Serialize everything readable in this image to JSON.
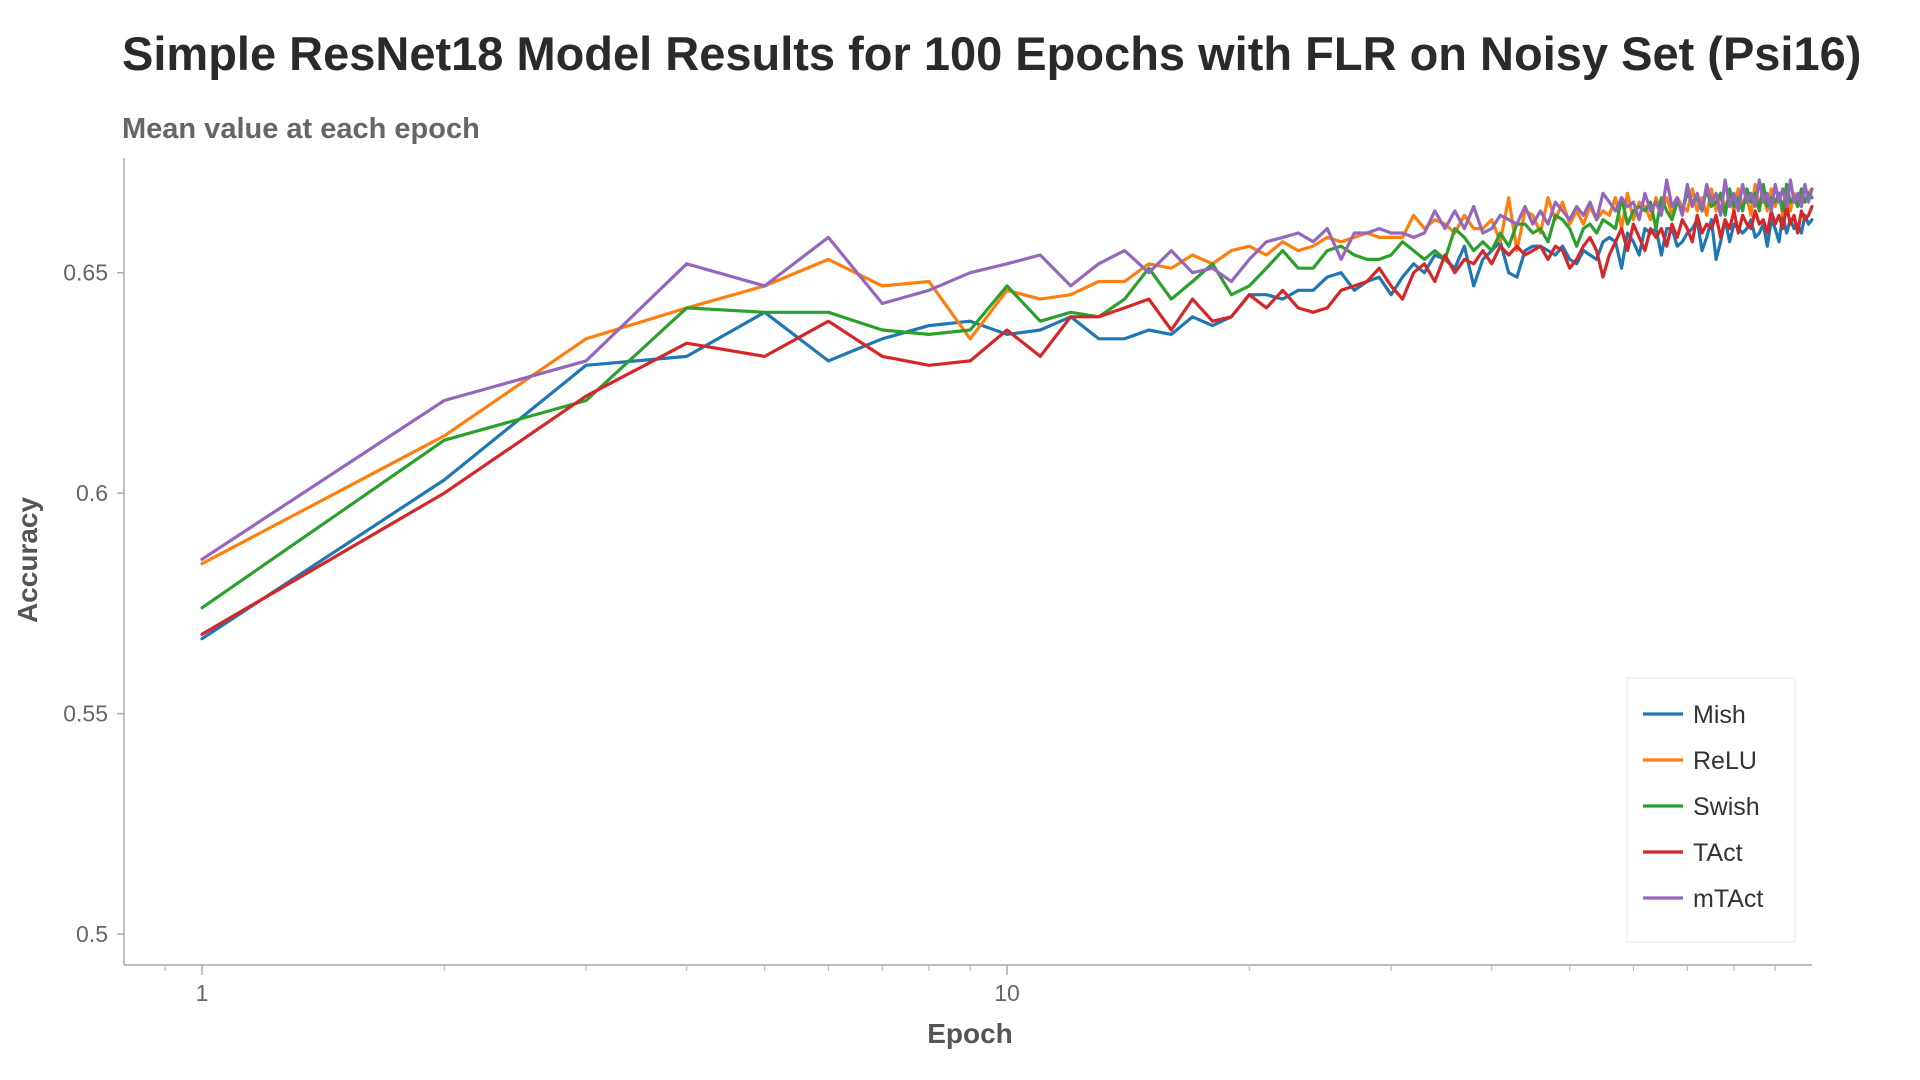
{
  "chart_data": {
    "type": "line",
    "title": "Simple ResNet18 Model Results for 100 Epochs with FLR on Noisy Set (Psi16)",
    "subtitle": "Mean value at each epoch",
    "xlabel": "Epoch",
    "ylabel": "Accuracy",
    "x_scale": "log",
    "xlim": [
      0.8,
      100
    ],
    "ylim": [
      0.493,
      0.676
    ],
    "x_ticks": [
      {
        "value": 1,
        "label": "1"
      },
      {
        "value": 10,
        "label": "10"
      }
    ],
    "y_ticks": [
      {
        "value": 0.5,
        "label": "0.5"
      },
      {
        "value": 0.55,
        "label": "0.55"
      },
      {
        "value": 0.6,
        "label": "0.6"
      },
      {
        "value": 0.65,
        "label": "0.65"
      }
    ],
    "grid": false,
    "legend_position": "bottom-right",
    "x": [
      1,
      2,
      3,
      4,
      5,
      6,
      7,
      8,
      9,
      10,
      11,
      12,
      13,
      14,
      15,
      16,
      17,
      18,
      19,
      20,
      21,
      22,
      23,
      24,
      25,
      26,
      27,
      28,
      29,
      30,
      31,
      32,
      33,
      34,
      35,
      36,
      37,
      38,
      39,
      40,
      41,
      42,
      43,
      44,
      45,
      46,
      47,
      48,
      49,
      50,
      51,
      52,
      53,
      54,
      55,
      56,
      57,
      58,
      59,
      60,
      61,
      62,
      63,
      64,
      65,
      66,
      67,
      68,
      69,
      70,
      71,
      72,
      73,
      74,
      75,
      76,
      77,
      78,
      79,
      80,
      81,
      82,
      83,
      84,
      85,
      86,
      87,
      88,
      89,
      90,
      91,
      92,
      93,
      94,
      95,
      96,
      97,
      98,
      99,
      100
    ],
    "series": [
      {
        "name": "Mish",
        "color": "#1f77b4",
        "values": [
          0.567,
          0.603,
          0.629,
          0.631,
          0.641,
          0.63,
          0.635,
          0.638,
          0.639,
          0.636,
          0.637,
          0.64,
          0.635,
          0.635,
          0.637,
          0.636,
          0.64,
          0.638,
          0.64,
          0.645,
          0.645,
          0.644,
          0.646,
          0.646,
          0.649,
          0.65,
          0.646,
          0.648,
          0.649,
          0.645,
          0.649,
          0.652,
          0.65,
          0.654,
          0.653,
          0.651,
          0.656,
          0.647,
          0.653,
          0.655,
          0.657,
          0.65,
          0.649,
          0.655,
          0.656,
          0.656,
          0.655,
          0.654,
          0.656,
          0.653,
          0.652,
          0.655,
          0.654,
          0.653,
          0.657,
          0.658,
          0.657,
          0.651,
          0.659,
          0.657,
          0.654,
          0.66,
          0.659,
          0.66,
          0.654,
          0.66,
          0.66,
          0.656,
          0.657,
          0.659,
          0.66,
          0.662,
          0.655,
          0.658,
          0.662,
          0.653,
          0.657,
          0.662,
          0.657,
          0.661,
          0.66,
          0.659,
          0.66,
          0.662,
          0.658,
          0.659,
          0.661,
          0.656,
          0.662,
          0.66,
          0.657,
          0.663,
          0.659,
          0.662,
          0.66,
          0.661,
          0.659,
          0.663,
          0.661,
          0.662
        ]
      },
      {
        "name": "ReLU",
        "color": "#ff7f0e",
        "values": [
          0.584,
          0.613,
          0.635,
          0.642,
          0.647,
          0.653,
          0.647,
          0.648,
          0.635,
          0.646,
          0.644,
          0.645,
          0.648,
          0.648,
          0.652,
          0.651,
          0.654,
          0.652,
          0.655,
          0.656,
          0.654,
          0.657,
          0.655,
          0.656,
          0.658,
          0.657,
          0.658,
          0.659,
          0.658,
          0.658,
          0.658,
          0.663,
          0.66,
          0.662,
          0.661,
          0.659,
          0.663,
          0.66,
          0.66,
          0.662,
          0.657,
          0.667,
          0.655,
          0.664,
          0.663,
          0.659,
          0.667,
          0.662,
          0.666,
          0.661,
          0.664,
          0.661,
          0.665,
          0.662,
          0.664,
          0.663,
          0.667,
          0.66,
          0.668,
          0.662,
          0.666,
          0.665,
          0.662,
          0.667,
          0.664,
          0.667,
          0.663,
          0.667,
          0.665,
          0.664,
          0.669,
          0.664,
          0.667,
          0.663,
          0.669,
          0.664,
          0.668,
          0.665,
          0.667,
          0.664,
          0.669,
          0.665,
          0.667,
          0.663,
          0.67,
          0.665,
          0.667,
          0.664,
          0.669,
          0.665,
          0.668,
          0.663,
          0.67,
          0.664,
          0.668,
          0.665,
          0.667,
          0.666,
          0.668,
          0.669
        ]
      },
      {
        "name": "Swish",
        "color": "#2ca02c",
        "values": [
          0.574,
          0.612,
          0.621,
          0.642,
          0.641,
          0.641,
          0.637,
          0.636,
          0.637,
          0.647,
          0.639,
          0.641,
          0.64,
          0.644,
          0.651,
          0.644,
          0.648,
          0.652,
          0.645,
          0.647,
          0.651,
          0.655,
          0.651,
          0.651,
          0.655,
          0.656,
          0.654,
          0.653,
          0.653,
          0.654,
          0.657,
          0.655,
          0.653,
          0.655,
          0.653,
          0.66,
          0.658,
          0.655,
          0.657,
          0.655,
          0.659,
          0.656,
          0.661,
          0.661,
          0.659,
          0.66,
          0.657,
          0.663,
          0.662,
          0.66,
          0.656,
          0.66,
          0.661,
          0.659,
          0.662,
          0.661,
          0.66,
          0.667,
          0.661,
          0.664,
          0.665,
          0.664,
          0.666,
          0.66,
          0.667,
          0.664,
          0.662,
          0.666,
          0.664,
          0.668,
          0.666,
          0.667,
          0.664,
          0.669,
          0.665,
          0.666,
          0.668,
          0.663,
          0.669,
          0.665,
          0.667,
          0.664,
          0.669,
          0.666,
          0.668,
          0.664,
          0.67,
          0.665,
          0.667,
          0.666,
          0.668,
          0.664,
          0.67,
          0.666,
          0.667,
          0.665,
          0.669,
          0.666,
          0.668,
          0.667
        ]
      },
      {
        "name": "TAct",
        "color": "#d62728",
        "values": [
          0.568,
          0.6,
          0.622,
          0.634,
          0.631,
          0.639,
          0.631,
          0.629,
          0.63,
          0.637,
          0.631,
          0.64,
          0.64,
          0.642,
          0.644,
          0.637,
          0.644,
          0.639,
          0.64,
          0.645,
          0.642,
          0.646,
          0.642,
          0.641,
          0.642,
          0.646,
          0.647,
          0.648,
          0.651,
          0.647,
          0.644,
          0.65,
          0.652,
          0.648,
          0.654,
          0.65,
          0.653,
          0.652,
          0.655,
          0.652,
          0.656,
          0.654,
          0.656,
          0.654,
          0.655,
          0.656,
          0.653,
          0.656,
          0.655,
          0.651,
          0.653,
          0.656,
          0.658,
          0.655,
          0.649,
          0.654,
          0.657,
          0.66,
          0.655,
          0.661,
          0.658,
          0.655,
          0.66,
          0.658,
          0.66,
          0.656,
          0.661,
          0.658,
          0.662,
          0.66,
          0.657,
          0.663,
          0.659,
          0.661,
          0.66,
          0.663,
          0.658,
          0.662,
          0.66,
          0.664,
          0.659,
          0.663,
          0.661,
          0.66,
          0.664,
          0.661,
          0.662,
          0.659,
          0.664,
          0.661,
          0.663,
          0.66,
          0.665,
          0.661,
          0.663,
          0.659,
          0.664,
          0.662,
          0.663,
          0.665
        ]
      },
      {
        "name": "mTAct",
        "color": "#9467bd",
        "values": [
          0.585,
          0.621,
          0.63,
          0.652,
          0.647,
          0.658,
          0.643,
          0.646,
          0.65,
          0.652,
          0.654,
          0.647,
          0.652,
          0.655,
          0.65,
          0.655,
          0.65,
          0.651,
          0.648,
          0.653,
          0.657,
          0.658,
          0.659,
          0.657,
          0.66,
          0.653,
          0.659,
          0.659,
          0.66,
          0.659,
          0.659,
          0.658,
          0.659,
          0.664,
          0.66,
          0.664,
          0.66,
          0.665,
          0.659,
          0.66,
          0.663,
          0.662,
          0.661,
          0.665,
          0.661,
          0.664,
          0.661,
          0.666,
          0.664,
          0.662,
          0.665,
          0.663,
          0.666,
          0.662,
          0.668,
          0.666,
          0.664,
          0.667,
          0.665,
          0.666,
          0.662,
          0.668,
          0.664,
          0.666,
          0.663,
          0.671,
          0.665,
          0.667,
          0.663,
          0.67,
          0.665,
          0.668,
          0.664,
          0.67,
          0.666,
          0.668,
          0.663,
          0.671,
          0.665,
          0.668,
          0.664,
          0.67,
          0.666,
          0.668,
          0.665,
          0.671,
          0.666,
          0.668,
          0.664,
          0.67,
          0.666,
          0.669,
          0.665,
          0.671,
          0.666,
          0.668,
          0.665,
          0.67,
          0.666,
          0.669
        ]
      }
    ]
  }
}
